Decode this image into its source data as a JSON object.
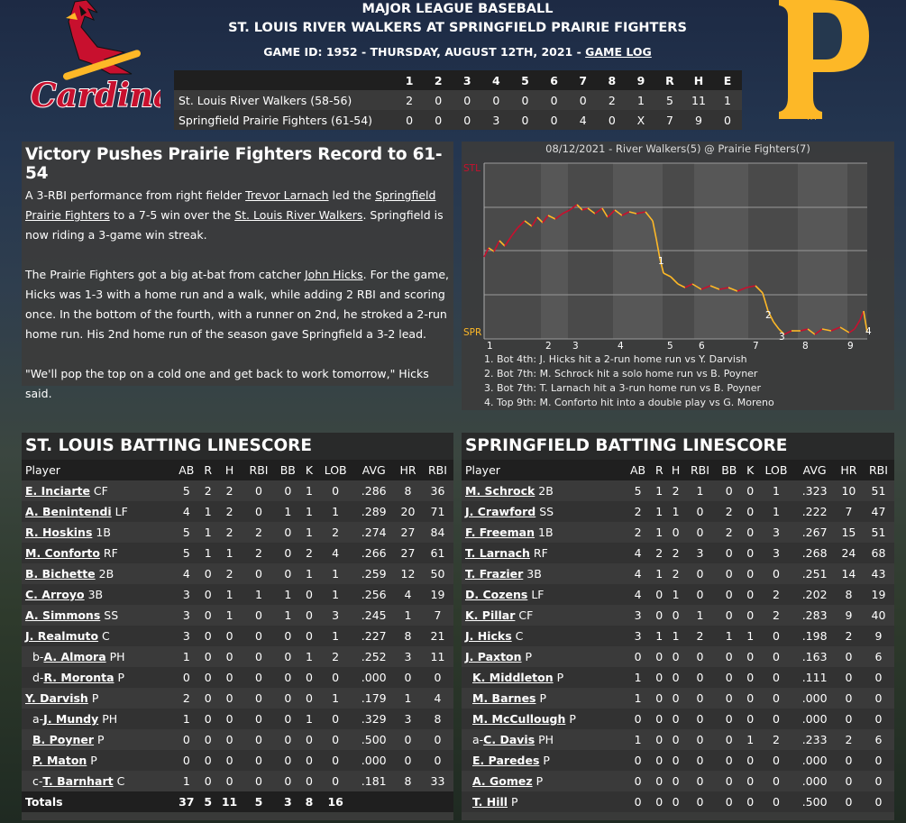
{
  "header": {
    "line1": "MAJOR LEAGUE BASEBALL",
    "line2": "ST. LOUIS RIVER WALKERS AT SPRINGFIELD PRAIRIE FIGHTERS",
    "line3": "GAME ID: 1952 - THURSDAY, AUGUST 12TH, 2021 - ",
    "game_log": "GAME LOG"
  },
  "logos": {
    "left_text": "Cardinals",
    "right_letter": "P",
    "right_tm": "TM"
  },
  "linescore": {
    "headers": [
      "",
      "1",
      "2",
      "3",
      "4",
      "5",
      "6",
      "7",
      "8",
      "9",
      "R",
      "H",
      "E"
    ],
    "rows": [
      [
        "St. Louis River Walkers (58-56)",
        "2",
        "0",
        "0",
        "0",
        "0",
        "0",
        "0",
        "2",
        "1",
        "5",
        "11",
        "1"
      ],
      [
        "Springfield Prairie Fighters (61-54)",
        "0",
        "0",
        "0",
        "3",
        "0",
        "0",
        "4",
        "0",
        "X",
        "7",
        "9",
        "0"
      ]
    ]
  },
  "story": {
    "headline": "Victory Pushes Prairie Fighters Record to 61-54",
    "p1": [
      {
        "t": "A 3-RBI performance from right fielder "
      },
      {
        "t": "Trevor Larnach",
        "u": true
      },
      {
        "t": " led the "
      },
      {
        "t": "Springfield Prairie Fighters",
        "u": true
      },
      {
        "t": " to a 7-5 win over the "
      },
      {
        "t": "St. Louis River Walkers",
        "u": true
      },
      {
        "t": ". Springfield is now riding a 3-game win streak."
      }
    ],
    "p2": [
      {
        "t": "The Prairie Fighters got a big at-bat from catcher "
      },
      {
        "t": "John Hicks",
        "u": true
      },
      {
        "t": ". For the game, Hicks was 1-3 with a home run and a walk, while adding 2 RBI and scoring once. In the bottom of the fourth, with a runner on 2nd, he stroked a 2-run home run. His 2nd home run of the season gave Springfield a 3-2 lead."
      }
    ],
    "p3": "\"We'll pop the top on a cold one and get back to work tomorrow,\" Hicks said."
  },
  "win_prob": {
    "title": "08/12/2021 - River Walkers(5) @ Prairie Fighters(7)",
    "top_label": "STL",
    "bottom_label": "SPR",
    "inning_labels": [
      "1",
      "2",
      "3",
      "4",
      "5",
      "6",
      "7",
      "8",
      "9"
    ],
    "markers": [
      "1",
      "2",
      "3",
      "4"
    ],
    "notes": [
      "1. Bot 4th: J. Hicks hit a 2-run home run vs Y. Darvish",
      "2. Bot 7th: M. Schrock hit a solo home run vs B. Poyner",
      "3. Bot 7th: T. Larnach hit a 3-run home run vs B. Poyner",
      "4. Top 9th: M. Conforto hit into a double play vs G. Moreno"
    ],
    "colors": {
      "stl": "#c8102e",
      "spr": "#fdb827"
    }
  },
  "stl_batting": {
    "title": "ST. LOUIS BATTING LINESCORE",
    "headers": [
      "Player",
      "AB",
      "R",
      "H",
      "RBI",
      "BB",
      "K",
      "LOB",
      "AVG",
      "HR",
      "RBI"
    ],
    "rows": [
      {
        "pre": "",
        "name": "E. Inciarte",
        "pos": "CF",
        "sub": false,
        "s": [
          "5",
          "2",
          "2",
          "0",
          "0",
          "1",
          "0",
          ".286",
          "8",
          "36"
        ]
      },
      {
        "pre": "",
        "name": "A. Benintendi",
        "pos": "LF",
        "sub": false,
        "s": [
          "4",
          "1",
          "2",
          "0",
          "1",
          "1",
          "1",
          ".289",
          "20",
          "71"
        ]
      },
      {
        "pre": "",
        "name": "R. Hoskins",
        "pos": "1B",
        "sub": false,
        "s": [
          "5",
          "1",
          "2",
          "2",
          "0",
          "1",
          "2",
          ".274",
          "27",
          "84"
        ]
      },
      {
        "pre": "",
        "name": "M. Conforto",
        "pos": "RF",
        "sub": false,
        "s": [
          "5",
          "1",
          "1",
          "2",
          "0",
          "2",
          "4",
          ".266",
          "27",
          "61"
        ]
      },
      {
        "pre": "",
        "name": "B. Bichette",
        "pos": "2B",
        "sub": false,
        "s": [
          "4",
          "0",
          "2",
          "0",
          "0",
          "1",
          "1",
          ".259",
          "12",
          "50"
        ]
      },
      {
        "pre": "",
        "name": "C. Arroyo",
        "pos": "3B",
        "sub": false,
        "s": [
          "3",
          "0",
          "1",
          "1",
          "1",
          "0",
          "1",
          ".256",
          "4",
          "19"
        ]
      },
      {
        "pre": "",
        "name": "A. Simmons",
        "pos": "SS",
        "sub": false,
        "s": [
          "3",
          "0",
          "1",
          "0",
          "1",
          "0",
          "3",
          ".245",
          "1",
          "7"
        ]
      },
      {
        "pre": "",
        "name": "J. Realmuto",
        "pos": "C",
        "sub": false,
        "s": [
          "3",
          "0",
          "0",
          "0",
          "0",
          "0",
          "1",
          ".227",
          "8",
          "21"
        ]
      },
      {
        "pre": "b-",
        "name": "A. Almora",
        "pos": "PH",
        "sub": true,
        "s": [
          "1",
          "0",
          "0",
          "0",
          "0",
          "1",
          "2",
          ".252",
          "3",
          "11"
        ]
      },
      {
        "pre": "d-",
        "name": "R. Moronta",
        "pos": "P",
        "sub": true,
        "s": [
          "0",
          "0",
          "0",
          "0",
          "0",
          "0",
          "0",
          ".000",
          "0",
          "0"
        ]
      },
      {
        "pre": "",
        "name": "Y. Darvish",
        "pos": "P",
        "sub": false,
        "s": [
          "2",
          "0",
          "0",
          "0",
          "0",
          "0",
          "1",
          ".179",
          "1",
          "4"
        ]
      },
      {
        "pre": "a-",
        "name": "J. Mundy",
        "pos": "PH",
        "sub": true,
        "s": [
          "1",
          "0",
          "0",
          "0",
          "0",
          "1",
          "0",
          ".329",
          "3",
          "8"
        ]
      },
      {
        "pre": "",
        "name": "B. Poyner",
        "pos": "P",
        "sub": true,
        "s": [
          "0",
          "0",
          "0",
          "0",
          "0",
          "0",
          "0",
          ".500",
          "0",
          "0"
        ]
      },
      {
        "pre": "",
        "name": "P. Maton",
        "pos": "P",
        "sub": true,
        "s": [
          "0",
          "0",
          "0",
          "0",
          "0",
          "0",
          "0",
          ".000",
          "0",
          "0"
        ]
      },
      {
        "pre": "c-",
        "name": "T. Barnhart",
        "pos": "C",
        "sub": true,
        "s": [
          "1",
          "0",
          "0",
          "0",
          "0",
          "0",
          "0",
          ".181",
          "8",
          "33"
        ]
      }
    ],
    "totals": [
      "Totals",
      "37",
      "5",
      "11",
      "5",
      "3",
      "8",
      "16",
      "",
      "",
      ""
    ]
  },
  "spr_batting": {
    "title": "SPRINGFIELD BATTING LINESCORE",
    "headers": [
      "Player",
      "AB",
      "R",
      "H",
      "RBI",
      "BB",
      "K",
      "LOB",
      "AVG",
      "HR",
      "RBI"
    ],
    "rows": [
      {
        "pre": "",
        "name": "M. Schrock",
        "pos": "2B",
        "sub": false,
        "s": [
          "5",
          "1",
          "2",
          "1",
          "0",
          "0",
          "1",
          ".323",
          "10",
          "51"
        ]
      },
      {
        "pre": "",
        "name": "J. Crawford",
        "pos": "SS",
        "sub": false,
        "s": [
          "2",
          "1",
          "1",
          "0",
          "2",
          "0",
          "1",
          ".222",
          "7",
          "47"
        ]
      },
      {
        "pre": "",
        "name": "F. Freeman",
        "pos": "1B",
        "sub": false,
        "s": [
          "2",
          "1",
          "0",
          "0",
          "2",
          "0",
          "3",
          ".267",
          "15",
          "51"
        ]
      },
      {
        "pre": "",
        "name": "T. Larnach",
        "pos": "RF",
        "sub": false,
        "s": [
          "4",
          "2",
          "2",
          "3",
          "0",
          "0",
          "3",
          ".268",
          "24",
          "68"
        ]
      },
      {
        "pre": "",
        "name": "T. Frazier",
        "pos": "3B",
        "sub": false,
        "s": [
          "4",
          "1",
          "2",
          "0",
          "0",
          "0",
          "0",
          ".251",
          "14",
          "43"
        ]
      },
      {
        "pre": "",
        "name": "D. Cozens",
        "pos": "LF",
        "sub": false,
        "s": [
          "4",
          "0",
          "1",
          "0",
          "0",
          "0",
          "2",
          ".202",
          "8",
          "19"
        ]
      },
      {
        "pre": "",
        "name": "K. Pillar",
        "pos": "CF",
        "sub": false,
        "s": [
          "3",
          "0",
          "0",
          "1",
          "0",
          "0",
          "2",
          ".283",
          "9",
          "40"
        ]
      },
      {
        "pre": "",
        "name": "J. Hicks",
        "pos": "C",
        "sub": false,
        "s": [
          "3",
          "1",
          "1",
          "2",
          "1",
          "1",
          "0",
          ".198",
          "2",
          "9"
        ]
      },
      {
        "pre": "",
        "name": "J. Paxton",
        "pos": "P",
        "sub": false,
        "s": [
          "0",
          "0",
          "0",
          "0",
          "0",
          "0",
          "0",
          ".163",
          "0",
          "6"
        ]
      },
      {
        "pre": "",
        "name": "K. Middleton",
        "pos": "P",
        "sub": true,
        "s": [
          "1",
          "0",
          "0",
          "0",
          "0",
          "0",
          "0",
          ".111",
          "0",
          "0"
        ]
      },
      {
        "pre": "",
        "name": "M. Barnes",
        "pos": "P",
        "sub": true,
        "s": [
          "1",
          "0",
          "0",
          "0",
          "0",
          "0",
          "0",
          ".000",
          "0",
          "0"
        ]
      },
      {
        "pre": "",
        "name": "M. McCullough",
        "pos": "P",
        "sub": true,
        "s": [
          "0",
          "0",
          "0",
          "0",
          "0",
          "0",
          "0",
          ".000",
          "0",
          "0"
        ]
      },
      {
        "pre": "a-",
        "name": "C. Davis",
        "pos": "PH",
        "sub": true,
        "s": [
          "1",
          "0",
          "0",
          "0",
          "0",
          "1",
          "2",
          ".233",
          "2",
          "6"
        ]
      },
      {
        "pre": "",
        "name": "E. Paredes",
        "pos": "P",
        "sub": true,
        "s": [
          "0",
          "0",
          "0",
          "0",
          "0",
          "0",
          "0",
          ".000",
          "0",
          "0"
        ]
      },
      {
        "pre": "",
        "name": "A. Gomez",
        "pos": "P",
        "sub": true,
        "s": [
          "0",
          "0",
          "0",
          "0",
          "0",
          "0",
          "0",
          ".000",
          "0",
          "0"
        ]
      },
      {
        "pre": "",
        "name": "T. Hill",
        "pos": "P",
        "sub": true,
        "s": [
          "0",
          "0",
          "0",
          "0",
          "0",
          "0",
          "0",
          ".500",
          "0",
          "0"
        ]
      }
    ]
  }
}
